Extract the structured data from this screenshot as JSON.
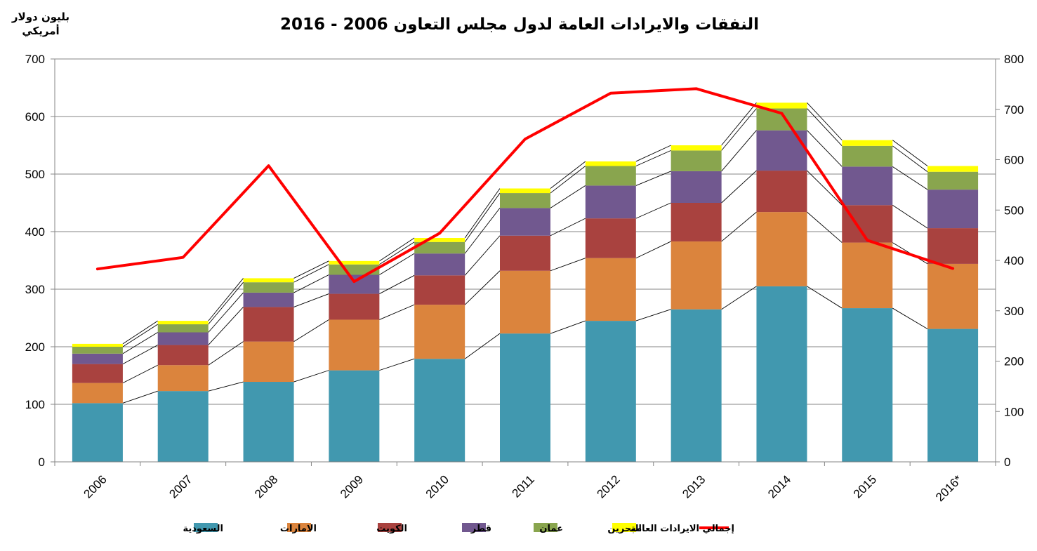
{
  "chart_data": {
    "type": "bar",
    "stacked": true,
    "title": "النفقات والايرادات العامة لدول مجلس التعاون 2006 - 2016",
    "ylabel": "بليون دولار أمريكي",
    "ylabel_lines": [
      "بليون دولار",
      "أمريكي"
    ],
    "categories": [
      "2006",
      "2007",
      "2008",
      "2009",
      "2010",
      "2011",
      "2012",
      "2013",
      "2014",
      "2015",
      "2016*"
    ],
    "ylim": [
      0,
      700
    ],
    "yticks": [
      0,
      100,
      200,
      300,
      400,
      500,
      600,
      700
    ],
    "y2lim": [
      0,
      800
    ],
    "y2ticks": [
      0,
      100,
      200,
      300,
      400,
      500,
      600,
      700,
      800
    ],
    "grid": true,
    "legend_position": "bottom",
    "series": [
      {
        "name": "السعودية",
        "color": "#4198AF",
        "values": [
          102,
          123,
          139,
          159,
          179,
          223,
          245,
          265,
          305,
          267,
          231
        ]
      },
      {
        "name": "الامارات",
        "color": "#DB843D",
        "values": [
          35,
          45,
          70,
          88,
          94,
          109,
          109,
          118,
          129,
          114,
          113
        ]
      },
      {
        "name": "الكويت",
        "color": "#A9423F",
        "values": [
          33,
          35,
          60,
          45,
          51,
          61,
          69,
          67,
          72,
          65,
          62
        ]
      },
      {
        "name": "قطر",
        "color": "#71588F",
        "values": [
          18,
          22,
          25,
          33,
          38,
          48,
          57,
          55,
          70,
          67,
          67
        ]
      },
      {
        "name": "عمان",
        "color": "#89A54E",
        "values": [
          12,
          14,
          18,
          18,
          20,
          26,
          34,
          36,
          38,
          36,
          31
        ]
      },
      {
        "name": "البحرين",
        "color": "#FFFF00",
        "values": [
          5,
          6,
          7,
          6,
          7,
          8,
          8,
          9,
          10,
          10,
          10
        ]
      }
    ],
    "line": {
      "name": "إجمالي الايرادات العامة",
      "color": "#FF0000",
      "axis": "secondary",
      "values": [
        383,
        406,
        588,
        358,
        454,
        641,
        732,
        741,
        692,
        440,
        384
      ]
    }
  }
}
